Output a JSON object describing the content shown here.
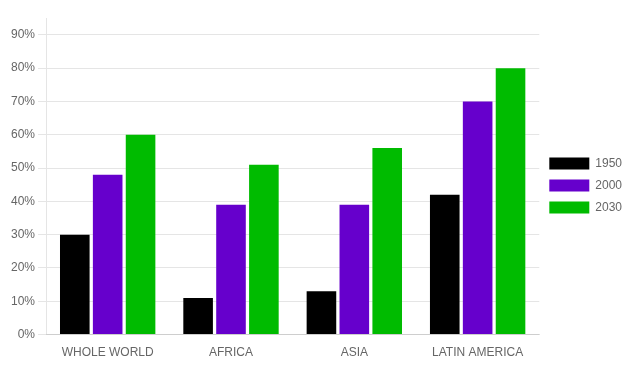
{
  "chart_data": {
    "type": "bar",
    "categories": [
      "WHOLE WORLD",
      "AFRICA",
      "ASIA",
      "LATIN AMERICA"
    ],
    "series": [
      {
        "name": "1950",
        "color": "#000000",
        "values": [
          30,
          11,
          13,
          42
        ]
      },
      {
        "name": "2000",
        "color": "#6600CC",
        "values": [
          48,
          39,
          39,
          70
        ]
      },
      {
        "name": "2030",
        "color": "#00BB00",
        "values": [
          60,
          51,
          56,
          80
        ]
      }
    ],
    "ylim": [
      0,
      95
    ],
    "yticks": [
      {
        "value": 0,
        "label": "0%"
      },
      {
        "value": 10,
        "label": "10%"
      },
      {
        "value": 20,
        "label": "20%"
      },
      {
        "value": 30,
        "label": "30%"
      },
      {
        "value": 40,
        "label": "40%"
      },
      {
        "value": 50,
        "label": "50%"
      },
      {
        "value": 60,
        "label": "60%"
      },
      {
        "value": 70,
        "label": "70%"
      },
      {
        "value": 80,
        "label": "80%"
      },
      {
        "value": 90,
        "label": "90%"
      }
    ],
    "grid": true,
    "legend": "right"
  }
}
